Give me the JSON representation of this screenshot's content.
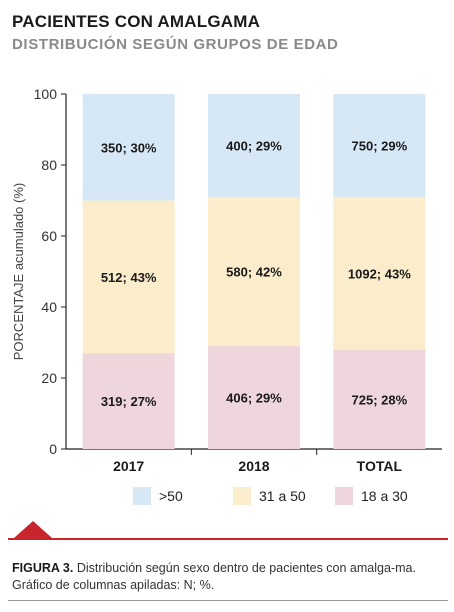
{
  "header": {
    "title": "PACIENTES CON AMALGAMA",
    "subtitle": "DISTRIBUCIÓN SEGÚN GRUPOS DE EDAD"
  },
  "caption": {
    "label": "FIGURA 3.",
    "text": " Distribución según sexo dentro de pacientes con amalga-ma. Gráfico de columnas apiladas: N; %."
  },
  "chart_data": {
    "type": "bar",
    "stacked": true,
    "categories": [
      "2017",
      "2018",
      "TOTAL"
    ],
    "ylabel": "PORCENTAJE acumulado (%)",
    "xlabel": "",
    "ylim": [
      0,
      100
    ],
    "yticks": [
      0,
      20,
      40,
      60,
      80,
      100
    ],
    "grid": false,
    "legend_position": "bottom",
    "series": [
      {
        "name": "18 a 30",
        "color": "#efd5dc",
        "values": [
          27,
          29,
          28
        ],
        "labels": [
          "319; 27%",
          "406; 29%",
          "725; 28%"
        ]
      },
      {
        "name": "31 a 50",
        "color": "#fbeccb",
        "values": [
          43,
          42,
          43
        ],
        "labels": [
          "512; 43%",
          "580; 42%",
          "1092; 43%"
        ]
      },
      {
        "name": ">50",
        "color": "#d6e8f6",
        "values": [
          30,
          29,
          29
        ],
        "labels": [
          "350; 30%",
          "400; 29%",
          "750; 29%"
        ]
      }
    ],
    "legend_order": [
      ">50",
      "31 a 50",
      "18 a 30"
    ]
  }
}
